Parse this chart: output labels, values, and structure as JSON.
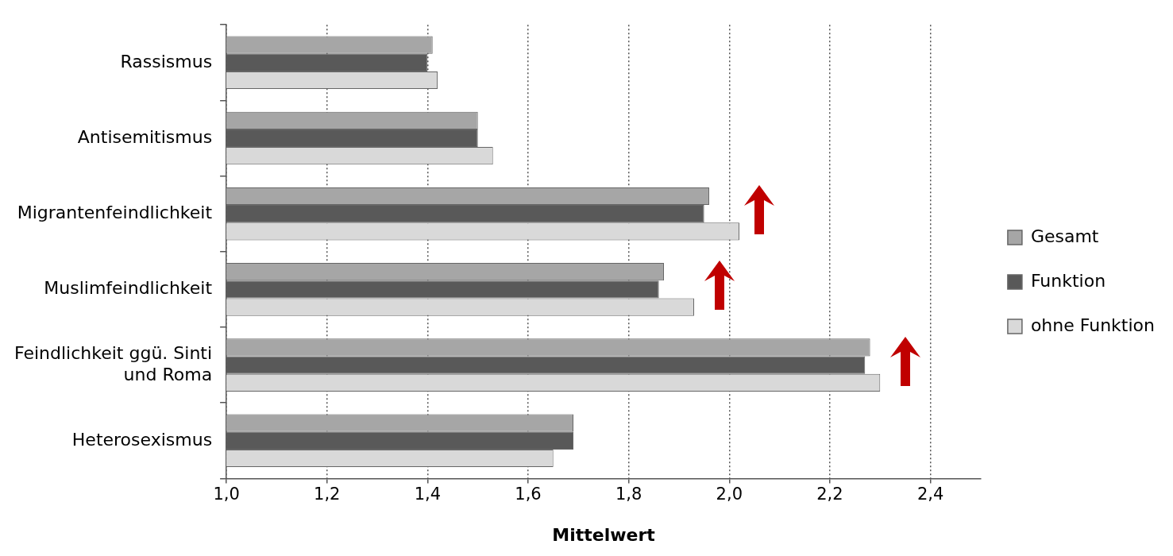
{
  "chart_data": {
    "type": "bar",
    "orientation": "horizontal",
    "xlabel": "Mittelwert",
    "categories": [
      "Rassismus",
      "Antisemitismus",
      "Migrantenfeindlichkeit",
      "Muslimfeindlichkeit",
      "Feindlichkeit ggü. Sinti und Roma",
      "Heterosexismus"
    ],
    "series": [
      {
        "name": "Gesamt",
        "color": "#a6a6a6",
        "values": [
          1.41,
          1.5,
          1.96,
          1.87,
          2.28,
          1.69
        ]
      },
      {
        "name": "Funktion",
        "color": "#595959",
        "values": [
          1.4,
          1.5,
          1.95,
          1.86,
          2.27,
          1.69
        ]
      },
      {
        "name": "ohne Funktion",
        "color": "#d9d9d9",
        "values": [
          1.42,
          1.53,
          2.02,
          1.93,
          2.3,
          1.65
        ]
      }
    ],
    "xlim": [
      1.0,
      2.5
    ],
    "xticks": [
      {
        "value": 1.0,
        "label": "1,0"
      },
      {
        "value": 1.2,
        "label": "1,2"
      },
      {
        "value": 1.4,
        "label": "1,4"
      },
      {
        "value": 1.6,
        "label": "1,6"
      },
      {
        "value": 1.8,
        "label": "1,8"
      },
      {
        "value": 2.0,
        "label": "2,0"
      },
      {
        "value": 2.2,
        "label": "2,2"
      },
      {
        "value": 2.4,
        "label": "2,4"
      }
    ],
    "grid": "x",
    "legend": "right"
  }
}
